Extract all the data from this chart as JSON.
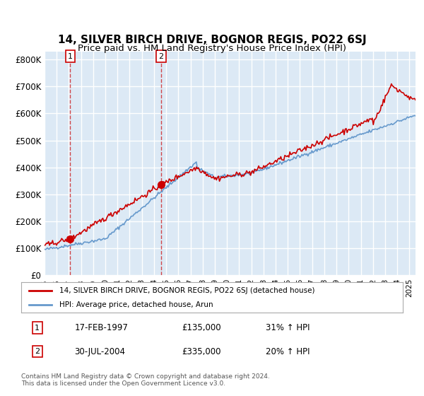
{
  "title": "14, SILVER BIRCH DRIVE, BOGNOR REGIS, PO22 6SJ",
  "subtitle": "Price paid vs. HM Land Registry's House Price Index (HPI)",
  "ylabel_ticks": [
    "£0",
    "£100K",
    "£200K",
    "£300K",
    "£400K",
    "£500K",
    "£600K",
    "£700K",
    "£800K"
  ],
  "ytick_values": [
    0,
    100000,
    200000,
    300000,
    400000,
    500000,
    600000,
    700000,
    800000
  ],
  "ylim": [
    0,
    830000
  ],
  "xlim_start": 1995.0,
  "xlim_end": 2025.5,
  "bg_color": "#dce9f5",
  "grid_color": "#ffffff",
  "red_line_color": "#cc0000",
  "blue_line_color": "#6699cc",
  "sale1_x": 1997.12,
  "sale1_y": 135000,
  "sale2_x": 2004.58,
  "sale2_y": 335000,
  "legend_label1": "14, SILVER BIRCH DRIVE, BOGNOR REGIS, PO22 6SJ (detached house)",
  "legend_label2": "HPI: Average price, detached house, Arun",
  "table_row1": [
    "1",
    "17-FEB-1997",
    "£135,000",
    "31% ↑ HPI"
  ],
  "table_row2": [
    "2",
    "30-JUL-2004",
    "£335,000",
    "20% ↑ HPI"
  ],
  "footnote": "Contains HM Land Registry data © Crown copyright and database right 2024.\nThis data is licensed under the Open Government Licence v3.0.",
  "title_fontsize": 11,
  "subtitle_fontsize": 9.5,
  "tick_fontsize": 8.5
}
